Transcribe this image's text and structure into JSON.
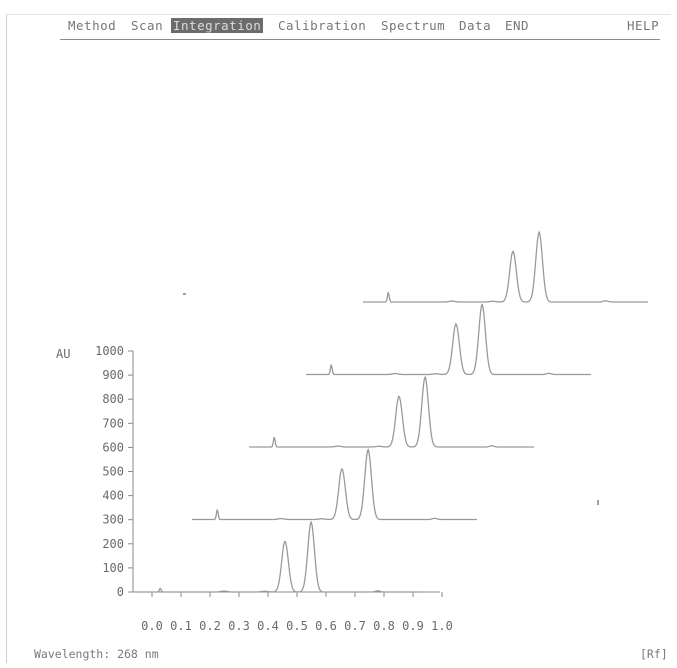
{
  "menu": {
    "items": [
      {
        "label": "Method"
      },
      {
        "label": "Scan"
      },
      {
        "label": "Integration"
      },
      {
        "label": "Calibration"
      },
      {
        "label": "Spectrum"
      },
      {
        "label": "Data"
      },
      {
        "label": "END"
      },
      {
        "label": "HELP"
      }
    ],
    "active_index": 2
  },
  "chart_data": {
    "type": "line",
    "ylabel": "AU",
    "y_ticks": [
      "1000",
      "900",
      "800",
      "700",
      "600",
      "500",
      "400",
      "300",
      "200",
      "100",
      "0"
    ],
    "x_ticks": [
      "0.0",
      "0.1",
      "0.2",
      "0.3",
      "0.4",
      "0.5",
      "0.6",
      "0.7",
      "0.8",
      "0.9",
      "1.0"
    ],
    "ylim": [
      0,
      1000
    ],
    "xlim": [
      0,
      1.0
    ],
    "x_label": "Rf",
    "stacked_offset_au": 300,
    "series": [
      {
        "values": [
          {
            "x": 0.07,
            "y": 15
          },
          {
            "x": 0.5,
            "y": 210
          },
          {
            "x": 0.59,
            "y": 290
          }
        ]
      },
      {
        "values": [
          {
            "x": 0.07,
            "y": 40
          },
          {
            "x": 0.5,
            "y": 210
          },
          {
            "x": 0.59,
            "y": 290
          }
        ]
      },
      {
        "values": [
          {
            "x": 0.07,
            "y": 40
          },
          {
            "x": 0.5,
            "y": 210
          },
          {
            "x": 0.59,
            "y": 290
          }
        ]
      },
      {
        "values": [
          {
            "x": 0.07,
            "y": 40
          },
          {
            "x": 0.5,
            "y": 210
          },
          {
            "x": 0.59,
            "y": 290
          }
        ]
      },
      {
        "values": [
          {
            "x": 0.07,
            "y": 40
          },
          {
            "x": 0.5,
            "y": 210
          },
          {
            "x": 0.59,
            "y": 290
          }
        ]
      }
    ]
  },
  "status": {
    "wavelength": "Wavelength: 268 nm",
    "rf": "[Rf]"
  },
  "colors": {
    "trace": "#9a9a9a",
    "axis": "#8a8a8a",
    "text": "#6a6a6a",
    "menu_active_bg": "#6c6c6c"
  }
}
